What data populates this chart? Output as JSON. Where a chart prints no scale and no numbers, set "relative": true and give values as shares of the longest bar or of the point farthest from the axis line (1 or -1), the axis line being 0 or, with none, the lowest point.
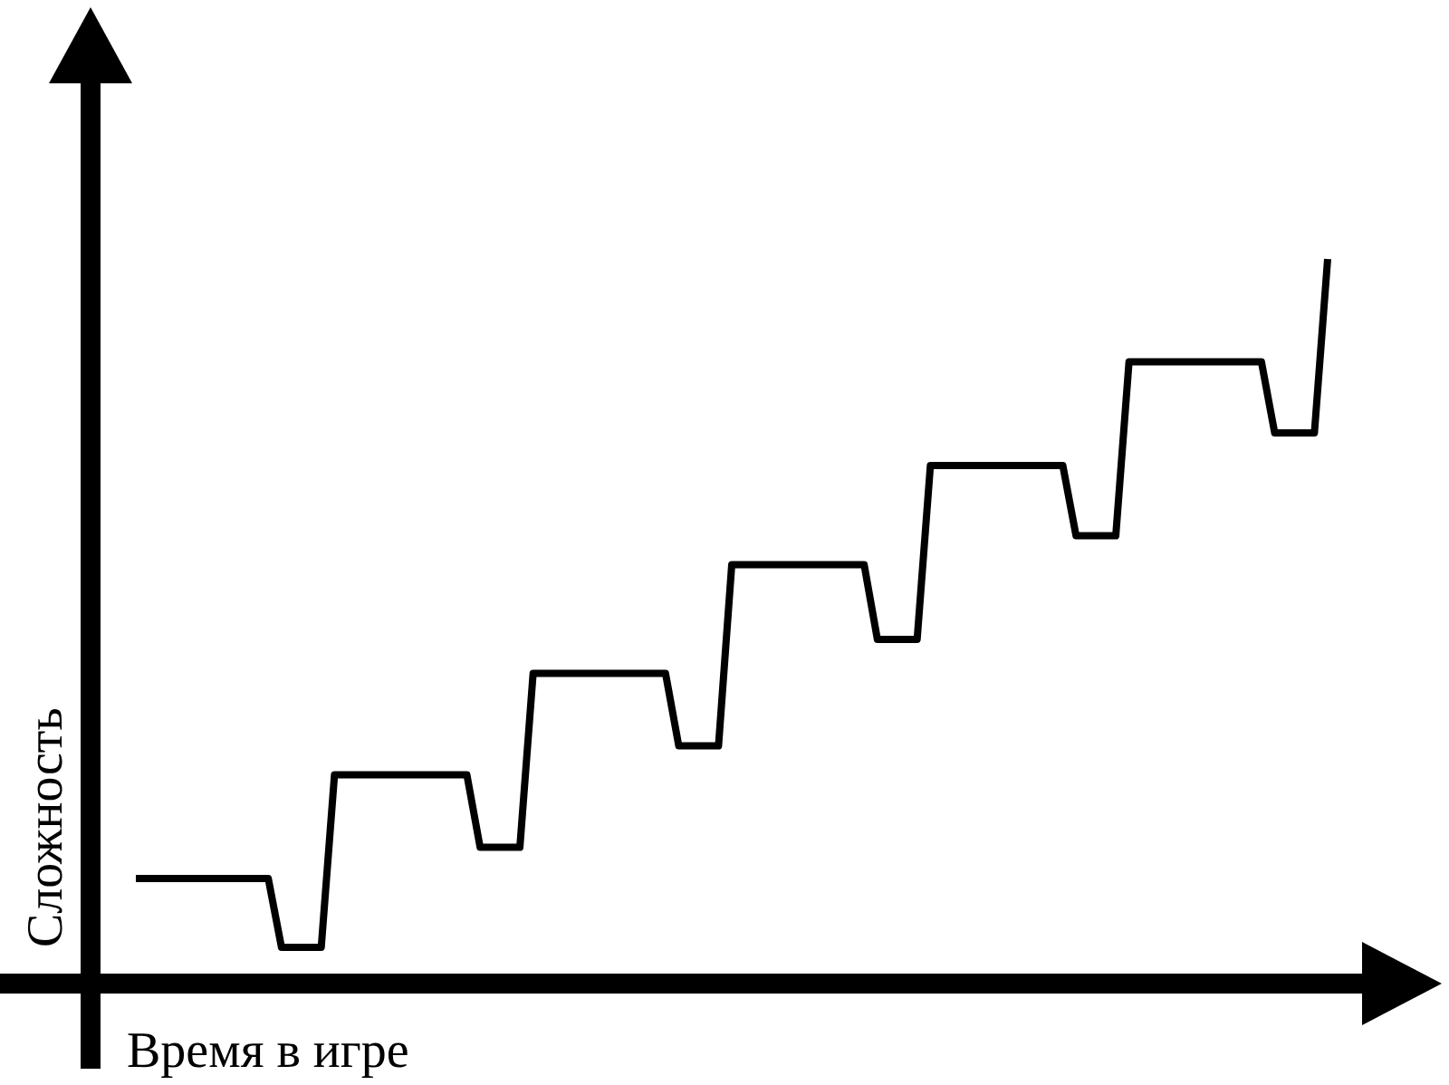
{
  "chart_data": {
    "type": "line",
    "relative": true,
    "xlabel": "Время в игре",
    "ylabel": "Сложность",
    "tick_labels": false,
    "grid": false,
    "legend": false,
    "marker": "none",
    "line_style": "solid",
    "categories": [
      null,
      null,
      null,
      null,
      null,
      null,
      null,
      null,
      null,
      null,
      null,
      null,
      null,
      null,
      null,
      null,
      null,
      null,
      null,
      null,
      null,
      null,
      null,
      null,
      null,
      null,
      null,
      null,
      null,
      null,
      null,
      null,
      null,
      null,
      null,
      null,
      null,
      null,
      null,
      null,
      null,
      null,
      null,
      null,
      null,
      null,
      null,
      null,
      null,
      null,
      null,
      null,
      null,
      null,
      null,
      null,
      null,
      null,
      null,
      null,
      null,
      null,
      null,
      null,
      null,
      null,
      null,
      null,
      null,
      null,
      null,
      null,
      null,
      null,
      null,
      null,
      null,
      null,
      null,
      null,
      null,
      null,
      null,
      null,
      null,
      null,
      null,
      null,
      null,
      null,
      null
    ],
    "series": [
      {
        "color": "#000000",
        "values": [
          0.145,
          0.145,
          0.145,
          0.145,
          0.145,
          0.145,
          0.145,
          0.145,
          0.145,
          0.145,
          0.145,
          0.05,
          0.05,
          0.05,
          0.05,
          0.288,
          0.288,
          0.288,
          0.288,
          0.288,
          0.288,
          0.288,
          0.288,
          0.288,
          0.288,
          0.288,
          0.188,
          0.188,
          0.188,
          0.188,
          0.428,
          0.428,
          0.428,
          0.428,
          0.428,
          0.428,
          0.428,
          0.428,
          0.428,
          0.428,
          0.428,
          0.328,
          0.328,
          0.328,
          0.328,
          0.578,
          0.578,
          0.578,
          0.578,
          0.578,
          0.578,
          0.578,
          0.578,
          0.578,
          0.578,
          0.578,
          0.475,
          0.475,
          0.475,
          0.475,
          0.715,
          0.715,
          0.715,
          0.715,
          0.715,
          0.715,
          0.715,
          0.715,
          0.715,
          0.715,
          0.715,
          0.618,
          0.618,
          0.618,
          0.618,
          0.858,
          0.858,
          0.858,
          0.858,
          0.858,
          0.858,
          0.858,
          0.858,
          0.858,
          0.858,
          0.858,
          0.76,
          0.76,
          0.76,
          0.76,
          1
        ]
      }
    ]
  }
}
